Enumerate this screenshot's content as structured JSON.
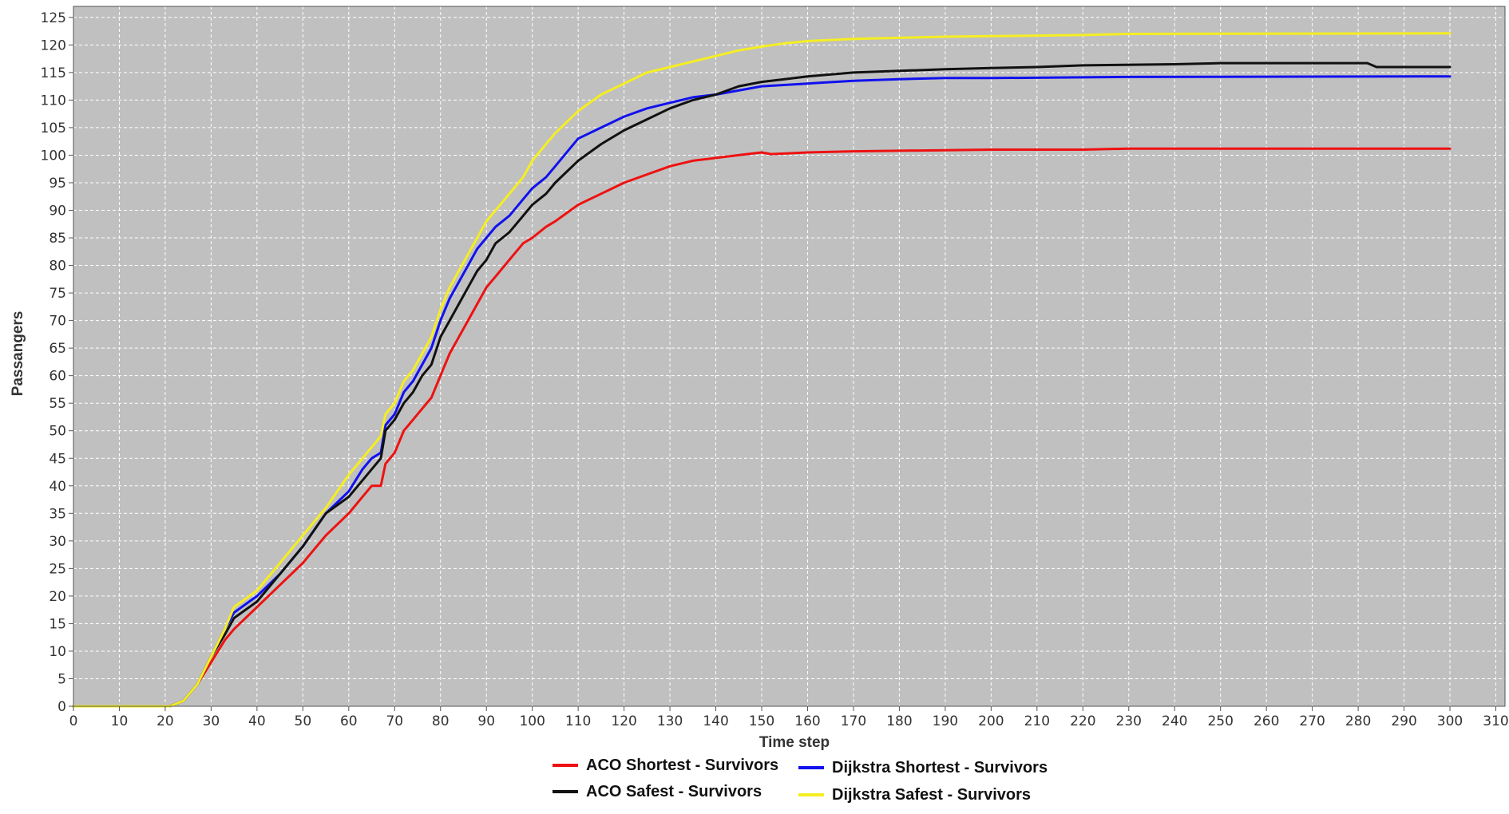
{
  "chart_data": {
    "type": "line",
    "title": "",
    "xlabel": "Time step",
    "ylabel": "Passangers",
    "xlim": [
      0,
      312
    ],
    "ylim": [
      0,
      127
    ],
    "xticks": [
      0,
      10,
      20,
      30,
      40,
      50,
      60,
      70,
      80,
      90,
      100,
      110,
      120,
      130,
      140,
      150,
      160,
      170,
      180,
      190,
      200,
      210,
      220,
      230,
      240,
      250,
      260,
      270,
      280,
      290,
      300,
      310
    ],
    "yticks": [
      0,
      5,
      10,
      15,
      20,
      25,
      30,
      35,
      40,
      45,
      50,
      55,
      60,
      65,
      70,
      75,
      80,
      85,
      90,
      95,
      100,
      105,
      110,
      115,
      120,
      125
    ],
    "grid": true,
    "legend_position": "bottom",
    "background_color": "#c0c0c0",
    "gridline_color": "#ffffff",
    "series": [
      {
        "name": "ACO Shortest - Survivors",
        "color": "#ee1111",
        "x": [
          0,
          21,
          24,
          27,
          30,
          33,
          35,
          40,
          45,
          50,
          55,
          60,
          63,
          65,
          67,
          68,
          70,
          72,
          74,
          76,
          78,
          80,
          82,
          84,
          86,
          88,
          90,
          92,
          95,
          98,
          100,
          103,
          105,
          110,
          115,
          120,
          125,
          130,
          135,
          140,
          145,
          150,
          152,
          155,
          160,
          170,
          180,
          190,
          200,
          220,
          230,
          250,
          280,
          300
        ],
        "y": [
          0,
          0,
          1,
          4,
          8,
          12,
          14,
          18,
          22,
          26,
          31,
          35,
          38,
          40,
          40,
          44,
          46,
          50,
          52,
          54,
          56,
          60,
          64,
          67,
          70,
          73,
          76,
          78,
          81,
          84,
          85,
          87,
          88,
          91,
          93,
          95,
          96.5,
          98,
          99,
          99.5,
          100,
          100.5,
          100.2,
          100.3,
          100.5,
          100.7,
          100.8,
          100.9,
          101,
          101,
          101.2,
          101.2,
          101.2,
          101.2
        ]
      },
      {
        "name": "Dijkstra Shortest - Survivors",
        "color": "#1111ee",
        "x": [
          0,
          21,
          24,
          27,
          30,
          33,
          35,
          40,
          45,
          50,
          55,
          60,
          63,
          65,
          67,
          68,
          70,
          72,
          74,
          76,
          78,
          80,
          82,
          84,
          86,
          88,
          90,
          92,
          95,
          98,
          100,
          103,
          105,
          110,
          115,
          120,
          125,
          130,
          135,
          140,
          150,
          160,
          170,
          180,
          190,
          200,
          230,
          300
        ],
        "y": [
          0,
          0,
          1,
          4,
          9,
          14,
          17,
          20,
          24,
          29,
          35,
          39,
          43,
          45,
          46,
          51,
          53,
          57,
          59,
          62,
          65,
          70,
          74,
          77,
          80,
          83,
          85,
          87,
          89,
          92,
          94,
          96,
          98,
          103,
          105,
          107,
          108.5,
          109.5,
          110.5,
          111,
          112.5,
          113,
          113.5,
          113.8,
          114,
          114,
          114.2,
          114.3
        ]
      },
      {
        "name": "ACO Safest - Survivors",
        "color": "#111111",
        "x": [
          0,
          21,
          24,
          27,
          30,
          33,
          35,
          40,
          45,
          50,
          55,
          60,
          63,
          65,
          67,
          68,
          70,
          72,
          74,
          76,
          78,
          80,
          82,
          84,
          86,
          88,
          90,
          92,
          95,
          98,
          100,
          103,
          105,
          110,
          115,
          120,
          125,
          130,
          135,
          140,
          145,
          150,
          155,
          160,
          170,
          180,
          190,
          200,
          210,
          220,
          240,
          250,
          260,
          282,
          284,
          300
        ],
        "y": [
          0,
          0,
          1,
          4,
          9,
          13,
          16,
          19,
          24,
          29,
          35,
          38,
          41,
          43,
          45,
          50,
          52,
          55,
          57,
          60,
          62,
          67,
          70,
          73,
          76,
          79,
          81,
          84,
          86,
          89,
          91,
          93,
          95,
          99,
          102,
          104.5,
          106.5,
          108.5,
          110,
          111,
          112.5,
          113.3,
          113.8,
          114.3,
          115,
          115.3,
          115.6,
          115.8,
          116,
          116.3,
          116.5,
          116.7,
          116.7,
          116.7,
          116,
          116
        ]
      },
      {
        "name": "Dijkstra Safest - Survivors",
        "color": "#f5ee22",
        "x": [
          0,
          21,
          24,
          27,
          30,
          33,
          35,
          40,
          45,
          50,
          55,
          60,
          63,
          65,
          67,
          68,
          70,
          72,
          74,
          76,
          78,
          80,
          82,
          84,
          86,
          88,
          90,
          92,
          95,
          98,
          100,
          103,
          105,
          110,
          115,
          120,
          125,
          130,
          135,
          140,
          145,
          150,
          155,
          160,
          170,
          180,
          190,
          200,
          220,
          230,
          300
        ],
        "y": [
          0,
          0,
          1,
          4,
          9,
          14,
          18,
          21,
          26,
          31,
          36,
          42,
          45,
          47,
          49,
          53,
          55,
          59,
          61,
          64,
          67,
          72,
          76,
          79,
          82,
          85,
          88,
          90,
          93,
          96,
          99,
          102,
          104,
          108,
          111,
          113,
          115,
          116,
          117,
          118,
          119,
          119.7,
          120.3,
          120.7,
          121.1,
          121.3,
          121.5,
          121.6,
          121.8,
          122,
          122.1
        ]
      }
    ]
  }
}
